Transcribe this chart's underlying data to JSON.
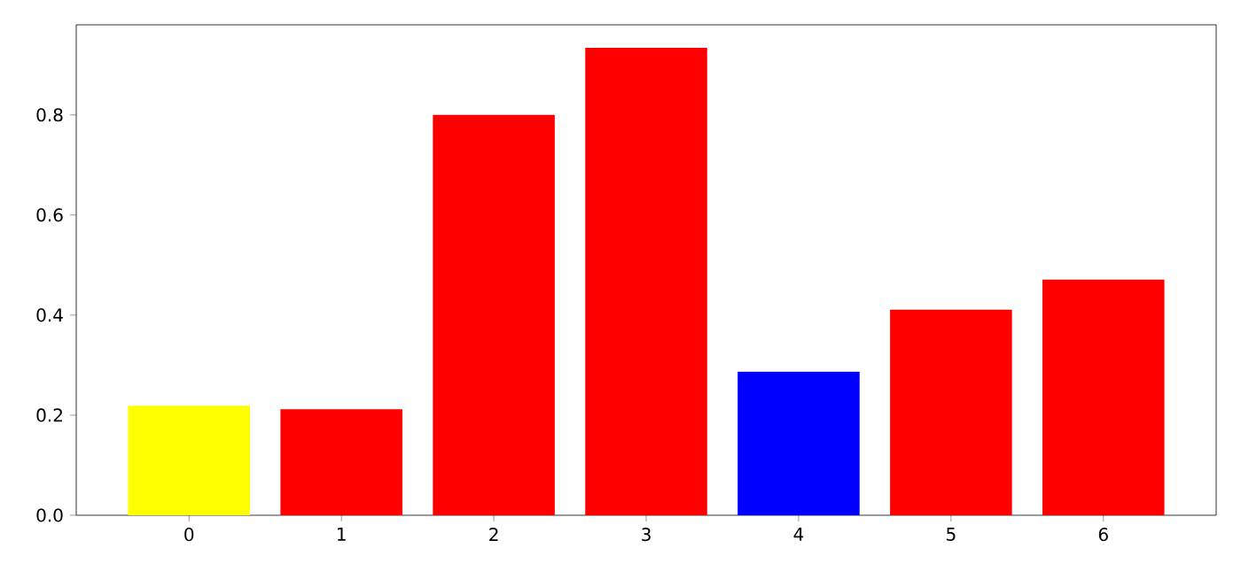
{
  "chart_data": {
    "type": "bar",
    "categories": [
      "0",
      "1",
      "2",
      "3",
      "4",
      "5",
      "6"
    ],
    "values": [
      0.219,
      0.212,
      0.8,
      0.934,
      0.287,
      0.411,
      0.471
    ],
    "colors": [
      "#ffff00",
      "#ff0000",
      "#ff0000",
      "#ff0000",
      "#0000ff",
      "#ff0000",
      "#ff0000"
    ],
    "ylim": [
      0,
      0.98
    ],
    "yticks": [
      {
        "value": 0,
        "label": "0.0"
      },
      {
        "value": 0.2,
        "label": "0.2"
      },
      {
        "value": 0.4,
        "label": "0.4"
      },
      {
        "value": 0.6,
        "label": "0.6"
      },
      {
        "value": 0.8,
        "label": "0.8"
      }
    ],
    "grid": false
  }
}
